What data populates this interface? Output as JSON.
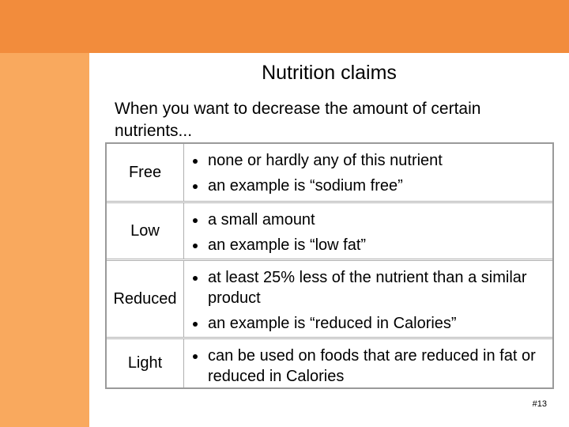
{
  "title": "Nutrition claims",
  "intro": "When you want to decrease the amount of certain nutrients...",
  "table": {
    "rows": [
      {
        "term": "Free",
        "bullets": [
          "none or hardly any of this nutrient",
          "an example is “sodium free”"
        ]
      },
      {
        "term": "Low",
        "bullets": [
          "a small amount",
          "an example is “low fat”"
        ]
      },
      {
        "term": "Reduced",
        "bullets": [
          "at least 25% less of the nutrient than a similar product",
          "an example is “reduced in Calories”"
        ]
      },
      {
        "term": "Light",
        "bullets": [
          "can be used on foods that are reduced in fat or reduced in Calories"
        ]
      }
    ]
  },
  "footer": {
    "page": "#13"
  }
}
